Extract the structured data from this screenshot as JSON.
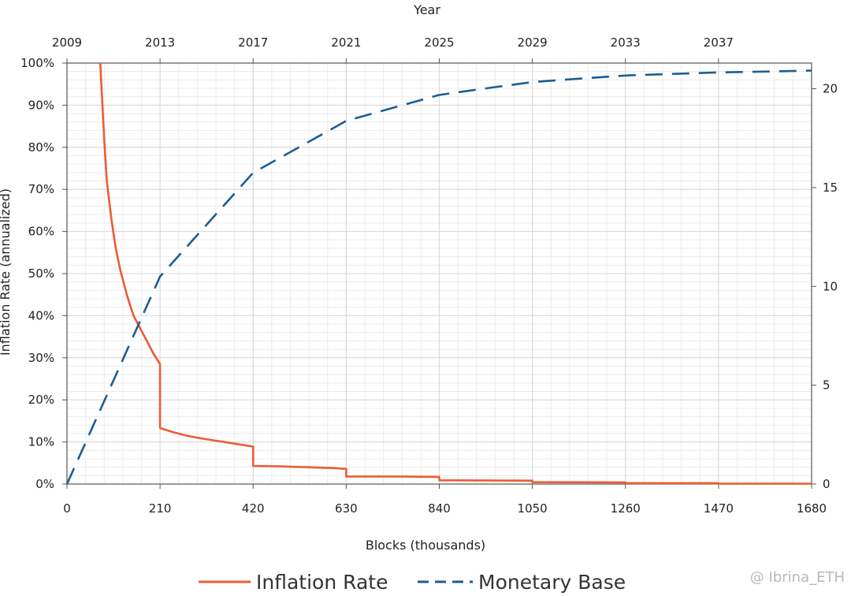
{
  "chart_data": {
    "type": "line",
    "top_axis": {
      "title": "Year",
      "ticks": [
        "2009",
        "2013",
        "2017",
        "2021",
        "2025",
        "2029",
        "2033",
        "2037"
      ]
    },
    "x_axis": {
      "title": "Blocks (thousands)",
      "ticks": [
        0,
        210,
        420,
        630,
        840,
        1050,
        1260,
        1470,
        1680
      ],
      "range": [
        0,
        1680
      ]
    },
    "y_left": {
      "title": "Inflation Rate (annualized)",
      "ticks": [
        "0%",
        "10%",
        "20%",
        "30%",
        "40%",
        "50%",
        "60%",
        "70%",
        "80%",
        "90%",
        "100%"
      ],
      "range": [
        0,
        100
      ]
    },
    "y_right": {
      "title": "",
      "ticks": [
        0,
        5,
        10,
        15,
        20
      ],
      "range": [
        0,
        21.3
      ]
    },
    "grid": true,
    "legend_position": "bottom",
    "series": [
      {
        "name": "Inflation Rate",
        "axis": "left",
        "color": "#f05a35",
        "style": "solid",
        "points": [
          [
            75,
            100
          ],
          [
            80,
            90
          ],
          [
            85,
            80
          ],
          [
            90,
            72
          ],
          [
            100,
            63
          ],
          [
            110,
            56
          ],
          [
            120,
            51
          ],
          [
            135,
            45
          ],
          [
            150,
            40
          ],
          [
            165,
            37
          ],
          [
            180,
            34
          ],
          [
            195,
            31
          ],
          [
            210,
            28.5
          ],
          [
            210,
            13.3
          ],
          [
            240,
            12.3
          ],
          [
            270,
            11.5
          ],
          [
            300,
            10.9
          ],
          [
            330,
            10.4
          ],
          [
            360,
            9.9
          ],
          [
            390,
            9.4
          ],
          [
            420,
            8.9
          ],
          [
            420,
            4.3
          ],
          [
            480,
            4.2
          ],
          [
            540,
            4.0
          ],
          [
            600,
            3.8
          ],
          [
            630,
            3.6
          ],
          [
            630,
            1.8
          ],
          [
            735,
            1.8
          ],
          [
            840,
            1.7
          ],
          [
            840,
            0.9
          ],
          [
            1050,
            0.8
          ],
          [
            1050,
            0.45
          ],
          [
            1260,
            0.4
          ],
          [
            1260,
            0.2
          ],
          [
            1470,
            0.2
          ],
          [
            1470,
            0.1
          ],
          [
            1680,
            0.1
          ]
        ]
      },
      {
        "name": "Monetary Base",
        "axis": "right",
        "color": "#1b5e95",
        "style": "dashed",
        "points": [
          [
            0,
            0
          ],
          [
            105,
            5.25
          ],
          [
            210,
            10.5
          ],
          [
            315,
            13.125
          ],
          [
            420,
            15.75
          ],
          [
            525,
            17.06
          ],
          [
            630,
            18.375
          ],
          [
            735,
            19.03
          ],
          [
            840,
            19.6875
          ],
          [
            945,
            20.02
          ],
          [
            1050,
            20.34
          ],
          [
            1155,
            20.51
          ],
          [
            1260,
            20.67
          ],
          [
            1365,
            20.75
          ],
          [
            1470,
            20.83
          ],
          [
            1575,
            20.87
          ],
          [
            1680,
            20.92
          ]
        ]
      }
    ]
  },
  "watermark": "@ Ibrina_ETH"
}
